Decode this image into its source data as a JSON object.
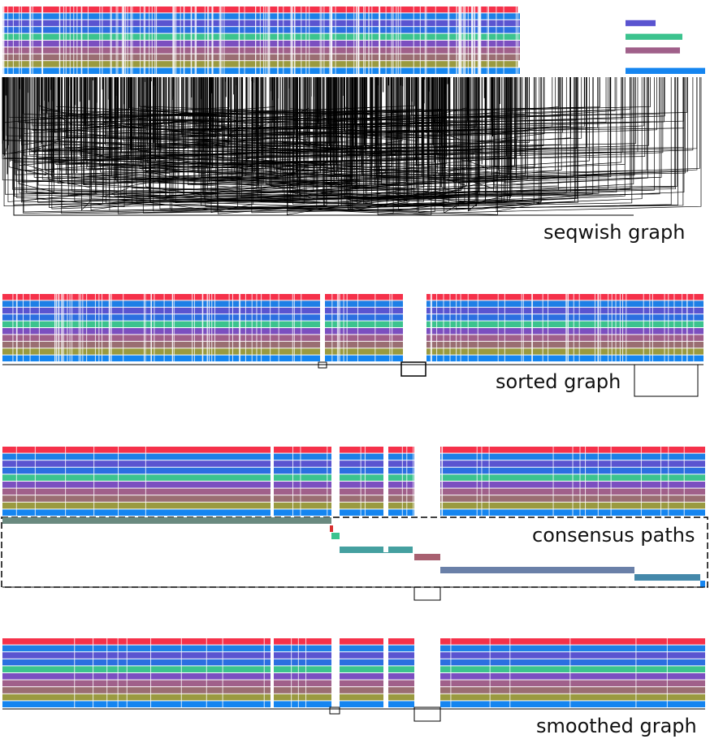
{
  "panels": [
    {
      "id": "seqwish",
      "label": "seqwish graph"
    },
    {
      "id": "sorted",
      "label": "sorted graph"
    },
    {
      "id": "consensus",
      "label": "consensus paths"
    },
    {
      "id": "smoothed",
      "label": "smoothed graph"
    }
  ],
  "path_colors": [
    "#f5314a",
    "#1e7fe6",
    "#5a54d0",
    "#2b6fe0",
    "#3cc38e",
    "#7b4fc0",
    "#a0608a",
    "#9a6e72",
    "#9a9a40",
    "#1585f0"
  ],
  "consensus_colors": [
    "#6a8a80",
    "#d83030",
    "#3cc38e",
    "#45a0a0",
    "#a86070",
    "#6a80a8",
    "#4488aa",
    "#1585f0"
  ]
}
